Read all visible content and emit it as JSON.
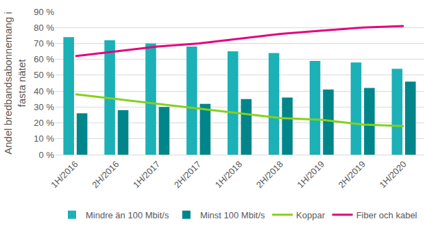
{
  "chart_data": {
    "type": "bar",
    "y_label": [
      "Andel bredbandsabonnemang i",
      "fasta nätet"
    ],
    "categories": [
      "1H/2016",
      "2H/2016",
      "1H/2017",
      "2H/2017",
      "1H/2018",
      "2H/2018",
      "1H/2019",
      "2H/2019",
      "1H/2020"
    ],
    "series": [
      {
        "name": "Mindre än 100 Mbit/s",
        "type": "bar",
        "color": "#1bb1b6",
        "values": [
          74,
          72,
          70,
          68,
          65,
          64,
          59,
          58,
          54
        ]
      },
      {
        "name": "Minst 100 Mbit/s",
        "type": "bar",
        "color": "#00868a",
        "values": [
          26,
          28,
          30,
          32,
          35,
          36,
          41,
          42,
          46
        ]
      },
      {
        "name": "Koppar",
        "type": "line",
        "color": "#84d11a",
        "values": [
          38,
          35,
          32,
          29,
          26,
          23,
          22,
          19,
          18
        ]
      },
      {
        "name": "Fiber och kabel",
        "type": "line",
        "color": "#e5007e",
        "values": [
          62,
          65,
          68,
          70,
          73,
          76,
          78,
          80,
          81
        ]
      }
    ],
    "ylim": [
      0,
      90
    ],
    "yticks": [
      {
        "value": 0,
        "label": "0 %"
      },
      {
        "value": 10,
        "label": "10 %"
      },
      {
        "value": 20,
        "label": "20 %"
      },
      {
        "value": 30,
        "label": "30 %"
      },
      {
        "value": 40,
        "label": "40 %"
      },
      {
        "value": 50,
        "label": "50 %"
      },
      {
        "value": 60,
        "label": "60 %"
      },
      {
        "value": 70,
        "label": "70 %"
      },
      {
        "value": 80,
        "label": "80 %"
      },
      {
        "value": 90,
        "label": "90 %"
      }
    ],
    "grid": true,
    "legend": "bottom"
  }
}
